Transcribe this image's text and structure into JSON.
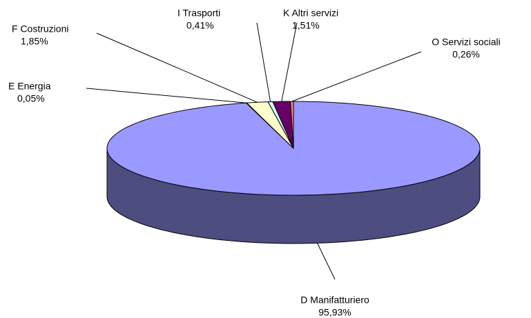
{
  "chart_data": {
    "type": "pie3d",
    "categories": [
      "D Manifatturiero",
      "E Energia",
      "F Costruzioni",
      "I Trasporti",
      "K Altri servizi",
      "O Servizi sociali"
    ],
    "values": [
      95.93,
      0.05,
      1.85,
      0.41,
      1.51,
      0.26
    ],
    "value_labels": [
      "95,93%",
      "0,05%",
      "1,85%",
      "0,41%",
      "1,51%",
      "0,26%"
    ],
    "colors": [
      "#9999ff",
      "#993366",
      "#ffffcc",
      "#ccffff",
      "#660066",
      "#ff8080"
    ]
  }
}
